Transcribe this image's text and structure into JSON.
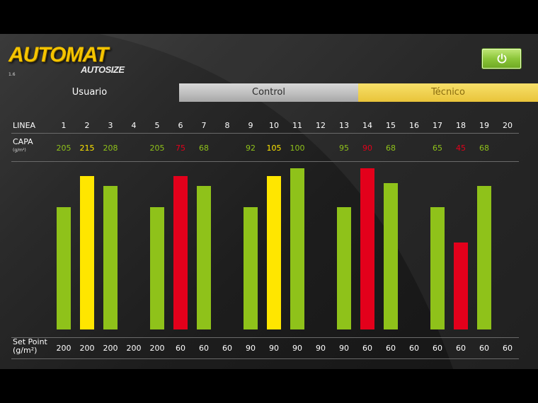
{
  "logo": {
    "brand": "AUTOMAT",
    "product": "AUTOSIZE",
    "version": "1.6"
  },
  "tabs": [
    {
      "label": "Usuario"
    },
    {
      "label": "Control"
    },
    {
      "label": "Técnico"
    }
  ],
  "table": {
    "linea_label": "LINEA",
    "capa_label": "CAPA",
    "capa_unit": "(g/m²)",
    "setpoint_label": "Set Point",
    "setpoint_unit": "(g/m²)",
    "lines": [
      "1",
      "2",
      "3",
      "4",
      "5",
      "6",
      "7",
      "8",
      "9",
      "10",
      "11",
      "12",
      "13",
      "14",
      "15",
      "16",
      "17",
      "18",
      "19",
      "20"
    ],
    "capa": [
      "205",
      "215",
      "208",
      "",
      "205",
      "75",
      "68",
      "",
      "92",
      "105",
      "100",
      "",
      "95",
      "90",
      "68",
      "",
      "65",
      "45",
      "68",
      ""
    ],
    "status": [
      "ok",
      "high",
      "ok",
      "",
      "ok",
      "alarm",
      "ok",
      "",
      "ok",
      "high",
      "ok",
      "",
      "ok",
      "alarm",
      "ok",
      "",
      "ok",
      "alarm",
      "ok",
      ""
    ],
    "bar_levels": [
      0.76,
      0.95,
      0.89,
      0,
      0.76,
      0.95,
      0.89,
      0,
      0.76,
      0.95,
      1.0,
      0,
      0.76,
      1.0,
      0.91,
      0,
      0.76,
      0.54,
      0.89,
      0
    ],
    "setpoints": [
      "200",
      "200",
      "200",
      "200",
      "200",
      "60",
      "60",
      "60",
      "90",
      "90",
      "90",
      "90",
      "90",
      "60",
      "60",
      "60",
      "60",
      "60",
      "60",
      "60"
    ]
  },
  "colors": {
    "ok": "#8fc21a",
    "high": "#ffe600",
    "alarm": "#e3001b",
    "ok_text": "#8fc21a",
    "high_text": "#ffe600",
    "alarm_text": "#e3001b",
    "power_icon": "#ffffff"
  }
}
